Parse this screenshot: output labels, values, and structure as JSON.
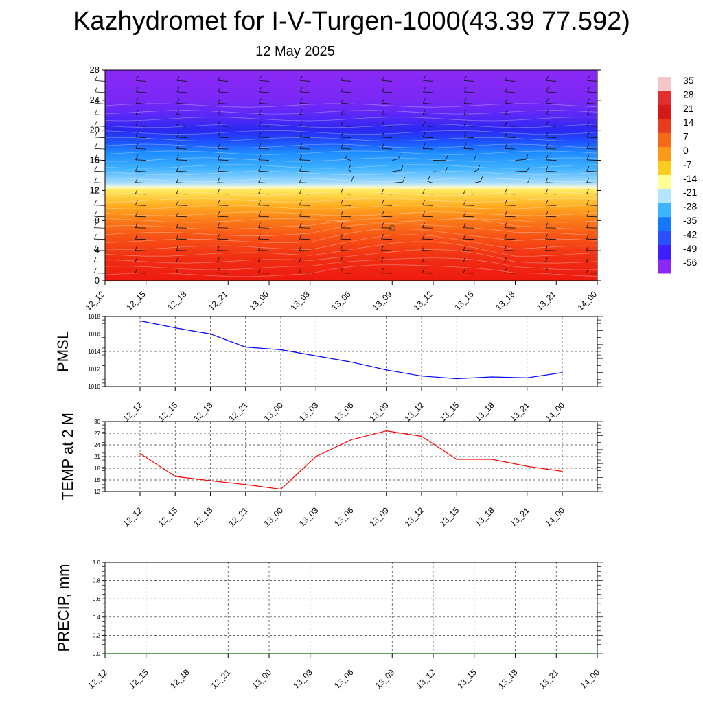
{
  "title": "Kazhydromet for I-V-Turgen-1000(43.39 77.592)",
  "subtitle": "12 May 2025",
  "chart_data": [
    {
      "type": "heatmap",
      "x_categories": [
        "12_12",
        "12_15",
        "12_18",
        "12_21",
        "13_00",
        "13_03",
        "13_06",
        "13_09",
        "13_12",
        "13_15",
        "13_18",
        "13_21",
        "14_00"
      ],
      "yticks": [
        0,
        4,
        8,
        12,
        16,
        20,
        24,
        28
      ],
      "ylim": [
        0,
        28
      ],
      "colorbar": {
        "labels": [
          "35",
          "28",
          "21",
          "14",
          "7",
          "0",
          "-7",
          "-14",
          "-21",
          "-28",
          "-35",
          "-42",
          "-49",
          "-56"
        ],
        "colors": [
          "#f5c8c8",
          "#e03030",
          "#d61818",
          "#e83a1c",
          "#f56a18",
          "#fb9a18",
          "#ffcc22",
          "#ffff99",
          "#b4e6ff",
          "#3cb4ff",
          "#1478ff",
          "#2d50ff",
          "#3c1eff",
          "#8c28f5"
        ]
      },
      "gradient": [
        {
          "value": 0,
          "color": "#ee1a10"
        },
        {
          "value": 3,
          "color": "#f02e12"
        },
        {
          "value": 6,
          "color": "#f85516"
        },
        {
          "value": 8,
          "color": "#fb7a18"
        },
        {
          "value": 10,
          "color": "#ffae20"
        },
        {
          "value": 12.1,
          "color": "#ffeb60"
        },
        {
          "value": 12.4,
          "color": "#fafad2"
        },
        {
          "value": 13,
          "color": "#a6dcff"
        },
        {
          "value": 15,
          "color": "#3cb0ff"
        },
        {
          "value": 17,
          "color": "#1e8cff"
        },
        {
          "value": 18.5,
          "color": "#1e50ff"
        },
        {
          "value": 20,
          "color": "#2a28f0"
        },
        {
          "value": 22,
          "color": "#5a28f8"
        },
        {
          "value": 24,
          "color": "#7a28f5"
        },
        {
          "value": 28,
          "color": "#8c28f5"
        }
      ],
      "marker": {
        "x": "13_09",
        "y": 7
      }
    },
    {
      "type": "line",
      "ylabel": "PMSL",
      "ylim": [
        1010,
        1018
      ],
      "yticks": [
        1010,
        1012,
        1014,
        1016,
        1018
      ],
      "x": [
        "12_12",
        "12_15",
        "12_18",
        "12_21",
        "13_00",
        "13_03",
        "13_06",
        "13_09",
        "13_12",
        "13_15",
        "13_18",
        "13_21",
        "14_00"
      ],
      "series": [
        {
          "values": [
            1017.5,
            1016.7,
            1016.0,
            1014.5,
            1014.2,
            1013.5,
            1012.8,
            1011.9,
            1011.2,
            1010.9,
            1011.1,
            1011.0,
            1011.6
          ],
          "color": "#0000ff"
        }
      ]
    },
    {
      "type": "line",
      "ylabel": "TEMP at 2 M",
      "ylim": [
        12,
        30
      ],
      "yticks": [
        12,
        15,
        18,
        21,
        24,
        27,
        30
      ],
      "x": [
        "12_12",
        "12_15",
        "12_18",
        "12_21",
        "13_00",
        "13_03",
        "13_06",
        "13_09",
        "13_12",
        "13_15",
        "13_18",
        "13_21",
        "14_00"
      ],
      "series": [
        {
          "values": [
            21.8,
            15.9,
            14.8,
            13.8,
            12.6,
            21.0,
            25.3,
            27.6,
            26.2,
            20.3,
            20.3,
            18.5,
            17.2
          ],
          "color": "#ff0000"
        }
      ]
    },
    {
      "type": "line",
      "ylabel": "PRECIP, mm",
      "ylim": [
        0,
        1
      ],
      "yticks": [
        "0.0",
        "0.2",
        "0.4",
        "0.6",
        "0.8",
        "1.0"
      ],
      "x": [
        "12_12",
        "12_15",
        "12_18",
        "12_21",
        "13_00",
        "13_03",
        "13_06",
        "13_09",
        "13_12",
        "13_15",
        "13_18",
        "13_21",
        "14_00"
      ],
      "series": [
        {
          "values": [
            0,
            0,
            0,
            0,
            0,
            0,
            0,
            0,
            0,
            0,
            0,
            0,
            0
          ],
          "color": "#006400"
        }
      ]
    }
  ]
}
